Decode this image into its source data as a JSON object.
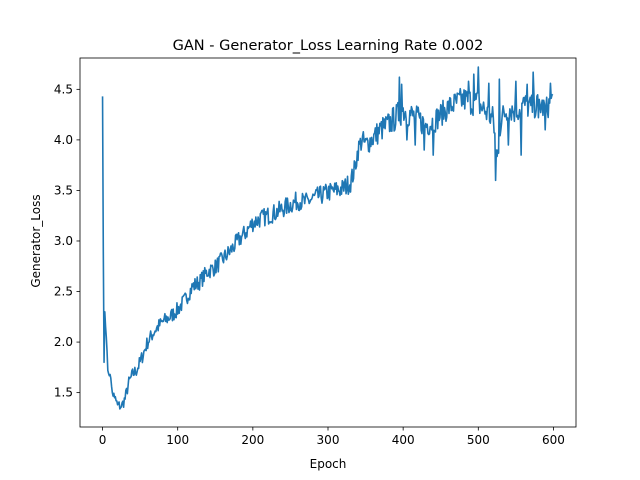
{
  "chart_data": {
    "type": "line",
    "title": "GAN - Generator_Loss Learning Rate 0.002",
    "xlabel": "Epoch",
    "ylabel": "Generator_Loss",
    "xlim": [
      -30,
      630
    ],
    "ylim": [
      1.16,
      4.81
    ],
    "x_ticks": [
      0,
      100,
      200,
      300,
      400,
      500,
      600
    ],
    "y_ticks": [
      1.5,
      2.0,
      2.5,
      3.0,
      3.5,
      4.0,
      4.5
    ],
    "x_tick_labels": [
      "0",
      "100",
      "200",
      "300",
      "400",
      "500",
      "600"
    ],
    "y_tick_labels": [
      "1.5",
      "2.0",
      "2.5",
      "3.0",
      "3.5",
      "4.0",
      "4.5"
    ],
    "grid": false,
    "legend": "none",
    "series": [
      {
        "color": "#1f77b4",
        "anchors": [
          [
            0,
            4.43
          ],
          [
            1,
            2.9
          ],
          [
            2,
            1.8
          ],
          [
            3,
            2.3
          ],
          [
            5,
            2.05
          ],
          [
            7,
            1.72
          ],
          [
            10,
            1.68
          ],
          [
            13,
            1.5
          ],
          [
            16,
            1.45
          ],
          [
            20,
            1.38
          ],
          [
            25,
            1.36
          ],
          [
            30,
            1.44
          ],
          [
            35,
            1.6
          ],
          [
            40,
            1.68
          ],
          [
            45,
            1.72
          ],
          [
            50,
            1.8
          ],
          [
            55,
            1.9
          ],
          [
            60,
            2.0
          ],
          [
            70,
            2.12
          ],
          [
            80,
            2.2
          ],
          [
            90,
            2.25
          ],
          [
            100,
            2.32
          ],
          [
            110,
            2.42
          ],
          [
            120,
            2.55
          ],
          [
            130,
            2.6
          ],
          [
            140,
            2.7
          ],
          [
            150,
            2.74
          ],
          [
            160,
            2.82
          ],
          [
            170,
            2.9
          ],
          [
            180,
            3.0
          ],
          [
            190,
            3.08
          ],
          [
            200,
            3.18
          ],
          [
            210,
            3.22
          ],
          [
            220,
            3.25
          ],
          [
            230,
            3.28
          ],
          [
            240,
            3.32
          ],
          [
            250,
            3.36
          ],
          [
            260,
            3.4
          ],
          [
            270,
            3.38
          ],
          [
            280,
            3.42
          ],
          [
            290,
            3.45
          ],
          [
            300,
            3.48
          ],
          [
            310,
            3.5
          ],
          [
            320,
            3.52
          ],
          [
            330,
            3.58
          ],
          [
            335,
            3.7
          ],
          [
            340,
            3.9
          ],
          [
            345,
            4.0
          ],
          [
            350,
            3.95
          ],
          [
            360,
            4.02
          ],
          [
            370,
            4.1
          ],
          [
            380,
            4.15
          ],
          [
            390,
            4.22
          ],
          [
            400,
            4.3
          ],
          [
            410,
            4.25
          ],
          [
            420,
            4.2
          ],
          [
            430,
            4.15
          ],
          [
            440,
            4.18
          ],
          [
            450,
            4.25
          ],
          [
            460,
            4.32
          ],
          [
            470,
            4.36
          ],
          [
            480,
            4.4
          ],
          [
            490,
            4.38
          ],
          [
            500,
            4.36
          ],
          [
            510,
            4.28
          ],
          [
            520,
            4.2
          ],
          [
            525,
            3.8
          ],
          [
            530,
            4.2
          ],
          [
            540,
            4.32
          ],
          [
            550,
            4.28
          ],
          [
            560,
            4.35
          ],
          [
            570,
            4.32
          ],
          [
            580,
            4.35
          ],
          [
            590,
            4.3
          ],
          [
            600,
            4.42
          ]
        ],
        "noise_band": [
          [
            0,
            0.0
          ],
          [
            10,
            0.05
          ],
          [
            50,
            0.07
          ],
          [
            200,
            0.09
          ],
          [
            330,
            0.1
          ],
          [
            400,
            0.14
          ],
          [
            450,
            0.12
          ],
          [
            500,
            0.14
          ],
          [
            600,
            0.12
          ]
        ],
        "spikes": [
          [
            395,
            4.62
          ],
          [
            398,
            4.55
          ],
          [
            405,
            4.0
          ],
          [
            416,
            3.95
          ],
          [
            428,
            3.9
          ],
          [
            440,
            3.85
          ],
          [
            487,
            4.58
          ],
          [
            494,
            4.65
          ],
          [
            500,
            4.72
          ],
          [
            514,
            4.56
          ],
          [
            523,
            3.6
          ],
          [
            528,
            4.6
          ],
          [
            540,
            3.95
          ],
          [
            550,
            4.58
          ],
          [
            557,
            3.85
          ],
          [
            565,
            4.55
          ],
          [
            573,
            4.67
          ],
          [
            580,
            4.22
          ],
          [
            589,
            4.1
          ],
          [
            596,
            4.56
          ]
        ],
        "points": 600
      }
    ]
  }
}
